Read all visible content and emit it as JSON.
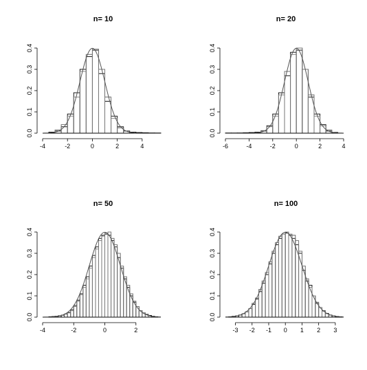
{
  "chart_data": [
    {
      "type": "bar",
      "title": "n= 10",
      "xlabel": "",
      "ylabel": "",
      "xlim": [
        -4,
        5.5
      ],
      "ylim": [
        0,
        0.4
      ],
      "xticks": [
        "-4",
        "-2",
        "0",
        "2",
        "4"
      ],
      "yticks": [
        "0.0",
        "0.1",
        "0.2",
        "0.3",
        "0.4"
      ],
      "bin_width": 0.5,
      "hist_dark": {
        "bin_start": [
          -3.5,
          -3.0,
          -2.5,
          -2.0,
          -1.5,
          -1.0,
          -0.5,
          0.0,
          0.5,
          1.0,
          1.5,
          2.0,
          2.5,
          3.0,
          3.5,
          4.0,
          4.5,
          5.0
        ],
        "density": [
          0.005,
          0.01,
          0.03,
          0.09,
          0.19,
          0.3,
          0.36,
          0.39,
          0.28,
          0.15,
          0.08,
          0.03,
          0.01,
          0.005,
          0.003,
          0.002,
          0.001,
          0.001
        ]
      },
      "hist_light": {
        "bin_start": [
          -3.5,
          -3.0,
          -2.5,
          -2.0,
          -1.5,
          -1.0,
          -0.5,
          0.0,
          0.5,
          1.0,
          1.5,
          2.0,
          2.5,
          3.0,
          3.5,
          4.0,
          4.5,
          5.0
        ],
        "density": [
          0.003,
          0.015,
          0.04,
          0.08,
          0.17,
          0.29,
          0.37,
          0.395,
          0.3,
          0.17,
          0.07,
          0.025,
          0.01,
          0.004,
          0.002,
          0.001,
          0.001,
          0.0
        ]
      },
      "density_curve": "normal(0,1)"
    },
    {
      "type": "bar",
      "title": "n= 20",
      "xlabel": "",
      "ylabel": "",
      "xlim": [
        -6,
        4
      ],
      "ylim": [
        0,
        0.4
      ],
      "xticks": [
        "-6",
        "-4",
        "-2",
        "0",
        "2",
        "4"
      ],
      "yticks": [
        "0.0",
        "0.1",
        "0.2",
        "0.3",
        "0.4"
      ],
      "bin_width": 0.5,
      "hist_dark": {
        "bin_start": [
          -6.0,
          -5.5,
          -5.0,
          -4.5,
          -4.0,
          -3.5,
          -3.0,
          -2.5,
          -2.0,
          -1.5,
          -1.0,
          -0.5,
          0.0,
          0.5,
          1.0,
          1.5,
          2.0,
          2.5,
          3.0
        ],
        "density": [
          0.001,
          0.001,
          0.001,
          0.002,
          0.003,
          0.005,
          0.01,
          0.035,
          0.09,
          0.19,
          0.27,
          0.38,
          0.39,
          0.3,
          0.17,
          0.09,
          0.04,
          0.01,
          0.003
        ]
      },
      "hist_light": {
        "bin_start": [
          -6.0,
          -5.5,
          -5.0,
          -4.5,
          -4.0,
          -3.5,
          -3.0,
          -2.5,
          -2.0,
          -1.5,
          -1.0,
          -0.5,
          0.0,
          0.5,
          1.0,
          1.5,
          2.0,
          2.5,
          3.0
        ],
        "density": [
          0.0,
          0.0,
          0.001,
          0.001,
          0.002,
          0.004,
          0.012,
          0.03,
          0.08,
          0.18,
          0.29,
          0.37,
          0.4,
          0.3,
          0.18,
          0.08,
          0.035,
          0.015,
          0.004
        ]
      },
      "density_curve": "normal(0,1)"
    },
    {
      "type": "bar",
      "title": "n= 50",
      "xlabel": "",
      "ylabel": "",
      "xlim": [
        -4,
        3.6
      ],
      "ylim": [
        0,
        0.4
      ],
      "xticks": [
        "-4",
        "-2",
        "0",
        "2"
      ],
      "yticks": [
        "0.0",
        "0.1",
        "0.2",
        "0.3",
        "0.4"
      ],
      "bin_width": 0.2,
      "hist_dark": {
        "bin_start": [
          -3.6,
          -3.4,
          -3.2,
          -3.0,
          -2.8,
          -2.6,
          -2.4,
          -2.2,
          -2.0,
          -1.8,
          -1.6,
          -1.4,
          -1.2,
          -1.0,
          -0.8,
          -0.6,
          -0.4,
          -0.2,
          0.0,
          0.2,
          0.4,
          0.6,
          0.8,
          1.0,
          1.2,
          1.4,
          1.6,
          1.8,
          2.0,
          2.2,
          2.4,
          2.6,
          2.8,
          3.0,
          3.2
        ],
        "density": [
          0.002,
          0.003,
          0.004,
          0.006,
          0.009,
          0.015,
          0.022,
          0.035,
          0.055,
          0.08,
          0.11,
          0.15,
          0.19,
          0.24,
          0.29,
          0.33,
          0.37,
          0.385,
          0.39,
          0.385,
          0.36,
          0.33,
          0.28,
          0.23,
          0.18,
          0.14,
          0.1,
          0.07,
          0.05,
          0.03,
          0.02,
          0.012,
          0.008,
          0.004,
          0.002
        ]
      },
      "hist_light": {
        "bin_start": [
          -3.6,
          -3.4,
          -3.2,
          -3.0,
          -2.8,
          -2.6,
          -2.4,
          -2.2,
          -2.0,
          -1.8,
          -1.6,
          -1.4,
          -1.2,
          -1.0,
          -0.8,
          -0.6,
          -0.4,
          -0.2,
          0.0,
          0.2,
          0.4,
          0.6,
          0.8,
          1.0,
          1.2,
          1.4,
          1.6,
          1.8,
          2.0,
          2.2,
          2.4,
          2.6,
          2.8,
          3.0,
          3.2
        ],
        "density": [
          0.001,
          0.002,
          0.004,
          0.007,
          0.01,
          0.014,
          0.02,
          0.03,
          0.05,
          0.075,
          0.105,
          0.14,
          0.18,
          0.23,
          0.28,
          0.32,
          0.36,
          0.38,
          0.395,
          0.4,
          0.37,
          0.34,
          0.3,
          0.24,
          0.19,
          0.15,
          0.11,
          0.075,
          0.05,
          0.03,
          0.02,
          0.014,
          0.008,
          0.004,
          0.002
        ]
      },
      "density_curve": "normal(0,1)"
    },
    {
      "type": "bar",
      "title": "n= 100",
      "xlabel": "",
      "ylabel": "",
      "xlim": [
        -3.6,
        3.5
      ],
      "ylim": [
        0,
        0.4
      ],
      "xticks": [
        "-3",
        "-2",
        "-1",
        "0",
        "1",
        "2",
        "3"
      ],
      "yticks": [
        "0.0",
        "0.1",
        "0.2",
        "0.3",
        "0.4"
      ],
      "bin_width": 0.2,
      "hist_dark": {
        "bin_start": [
          -3.4,
          -3.2,
          -3.0,
          -2.8,
          -2.6,
          -2.4,
          -2.2,
          -2.0,
          -1.8,
          -1.6,
          -1.4,
          -1.2,
          -1.0,
          -0.8,
          -0.6,
          -0.4,
          -0.2,
          0.0,
          0.2,
          0.4,
          0.6,
          0.8,
          1.0,
          1.2,
          1.4,
          1.6,
          1.8,
          2.0,
          2.2,
          2.4,
          2.6,
          2.8,
          3.0,
          3.2
        ],
        "density": [
          0.002,
          0.004,
          0.006,
          0.01,
          0.016,
          0.025,
          0.04,
          0.06,
          0.085,
          0.12,
          0.16,
          0.2,
          0.25,
          0.3,
          0.34,
          0.37,
          0.39,
          0.395,
          0.385,
          0.37,
          0.34,
          0.3,
          0.22,
          0.17,
          0.15,
          0.1,
          0.065,
          0.045,
          0.03,
          0.018,
          0.01,
          0.006,
          0.003,
          0.002
        ]
      },
      "hist_light": {
        "bin_start": [
          -3.4,
          -3.2,
          -3.0,
          -2.8,
          -2.6,
          -2.4,
          -2.2,
          -2.0,
          -1.8,
          -1.6,
          -1.4,
          -1.2,
          -1.0,
          -0.8,
          -0.6,
          -0.4,
          -0.2,
          0.0,
          0.2,
          0.4,
          0.6,
          0.8,
          1.0,
          1.2,
          1.4,
          1.6,
          1.8,
          2.0,
          2.2,
          2.4,
          2.6,
          2.8,
          3.0,
          3.2
        ],
        "density": [
          0.001,
          0.003,
          0.005,
          0.009,
          0.015,
          0.025,
          0.04,
          0.065,
          0.09,
          0.13,
          0.17,
          0.21,
          0.26,
          0.31,
          0.35,
          0.38,
          0.39,
          0.4,
          0.39,
          0.385,
          0.36,
          0.31,
          0.24,
          0.18,
          0.14,
          0.1,
          0.07,
          0.045,
          0.028,
          0.016,
          0.009,
          0.005,
          0.003,
          0.001
        ]
      },
      "density_curve": "normal(0,1)"
    }
  ]
}
